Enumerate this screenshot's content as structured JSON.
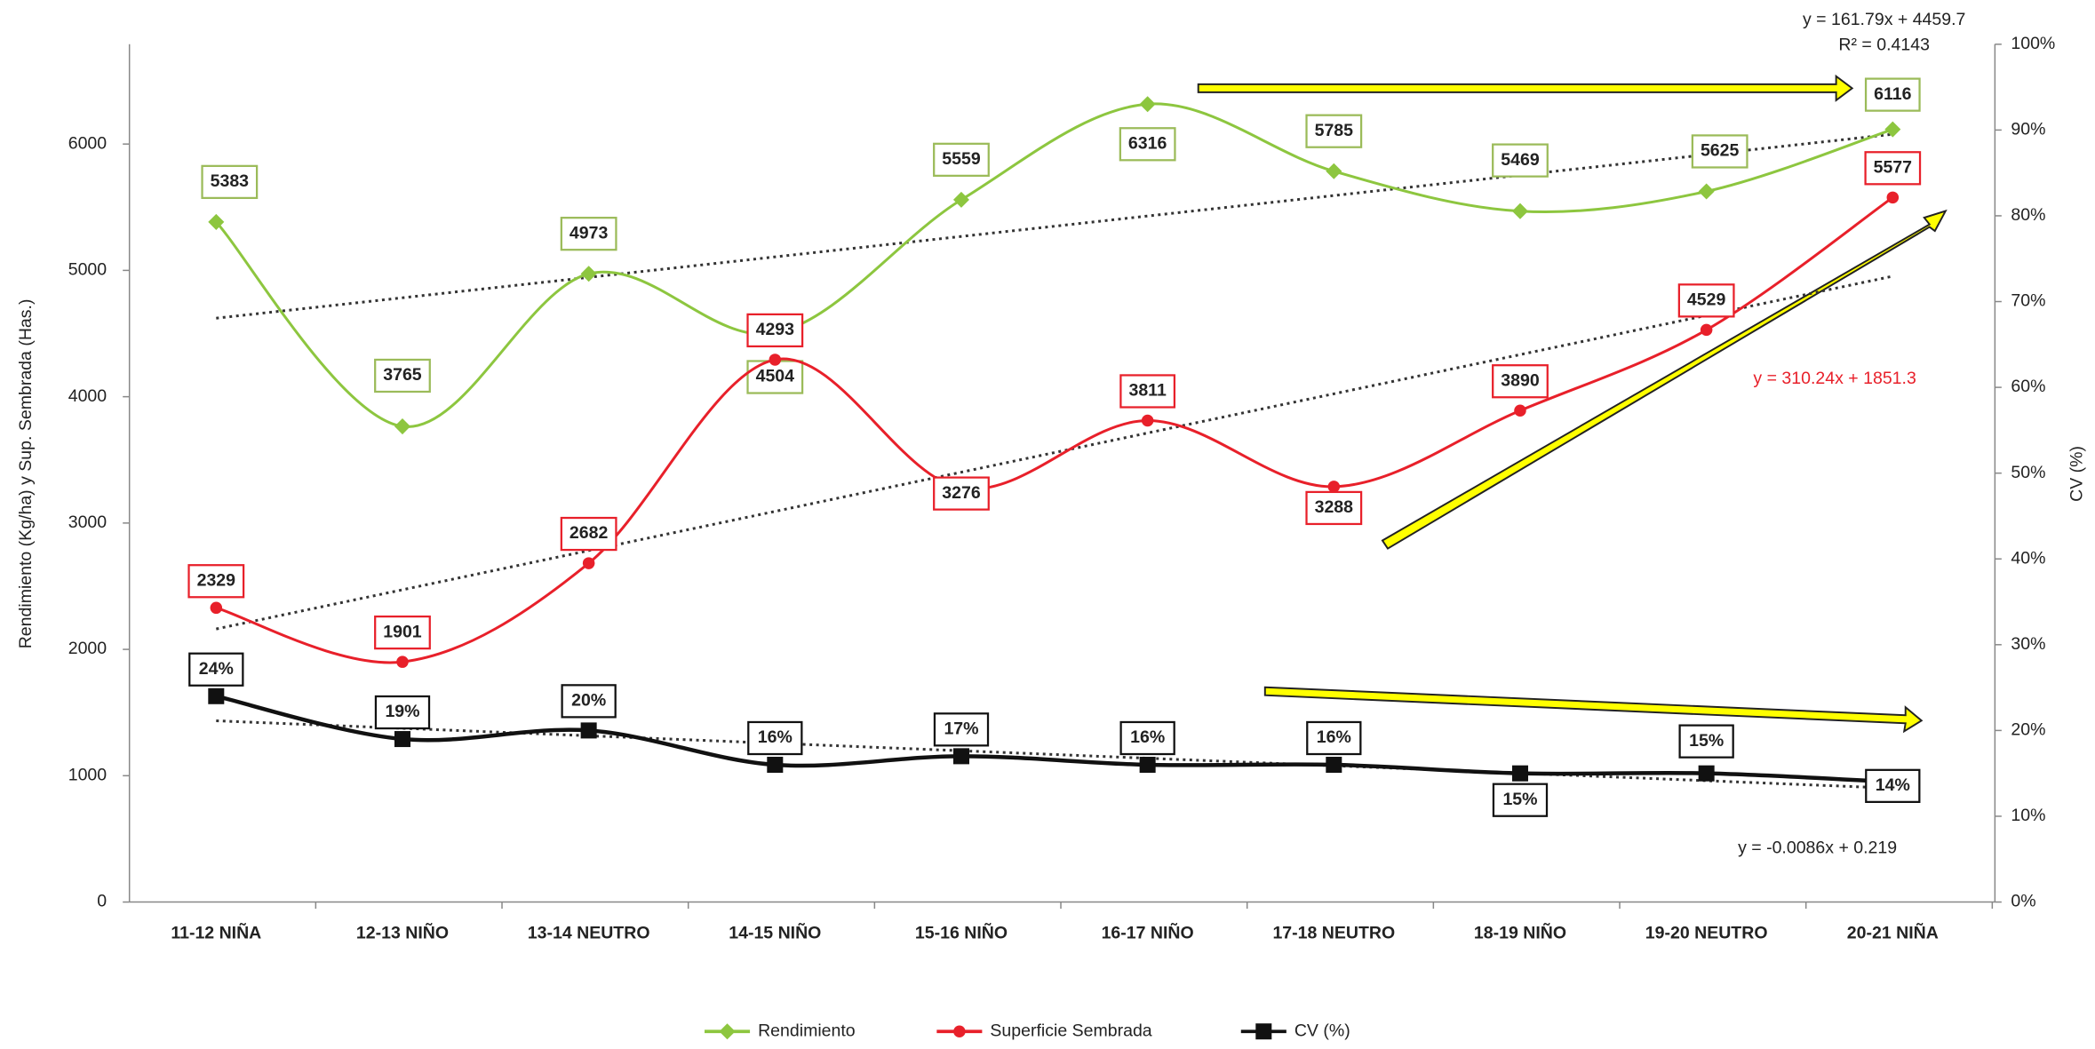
{
  "chart_data": {
    "type": "line",
    "categories": [
      "11-12 NIÑA",
      "12-13 NIÑO",
      "13-14 NEUTRO",
      "14-15 NIÑO",
      "15-16 NIÑO",
      "16-17 NIÑO",
      "17-18 NEUTRO",
      "18-19 NIÑO",
      "19-20 NEUTRO",
      "20-21 NIÑA"
    ],
    "series": [
      {
        "name": "Rendimiento",
        "color": "#8dc63f",
        "marker": "diamond",
        "values": [
          5383,
          3765,
          4973,
          4504,
          5559,
          6316,
          5785,
          5469,
          5625,
          6116
        ]
      },
      {
        "name": "Superficie Sembrada",
        "color": "#e8202a",
        "marker": "circle",
        "values": [
          2329,
          1901,
          2682,
          4293,
          3276,
          3811,
          3288,
          3890,
          4529,
          5577
        ]
      },
      {
        "name": "CV (%)",
        "color": "#111111",
        "marker": "square",
        "axis": "y2",
        "values": [
          24,
          19,
          20,
          16,
          17,
          16,
          16,
          15,
          15,
          14
        ],
        "value_labels": [
          "24%",
          "19%",
          "20%",
          "16%",
          "17%",
          "16%",
          "16%",
          "15%",
          "15%",
          "14%"
        ]
      }
    ],
    "ylabel": "Rendimiento (Kg/ha) y Sup. Sembrada (Has.)",
    "y2label": "CV (%)",
    "ylim": [
      0,
      6790
    ],
    "yticks": [
      0,
      1000,
      2000,
      3000,
      4000,
      5000,
      6000
    ],
    "y2lim": [
      0,
      100
    ],
    "y2ticks": [
      {
        "value": 0,
        "label": "0%"
      },
      {
        "value": 10,
        "label": "10%"
      },
      {
        "value": 20,
        "label": "20%"
      },
      {
        "value": 30,
        "label": "30%"
      },
      {
        "value": 40,
        "label": "40%"
      },
      {
        "value": 50,
        "label": "50%"
      },
      {
        "value": 60,
        "label": "60%"
      },
      {
        "value": 70,
        "label": "70%"
      },
      {
        "value": 80,
        "label": "80%"
      },
      {
        "value": 90,
        "label": "90%"
      },
      {
        "value": 100,
        "label": "100%"
      }
    ],
    "trendline": true,
    "legend": "bottom",
    "annotations": [
      "y = 161.79x + 4459.7",
      "R² = 0.4143",
      "y = 310.24x + 1851.3",
      "y = -0.0086x + 0.219"
    ]
  }
}
